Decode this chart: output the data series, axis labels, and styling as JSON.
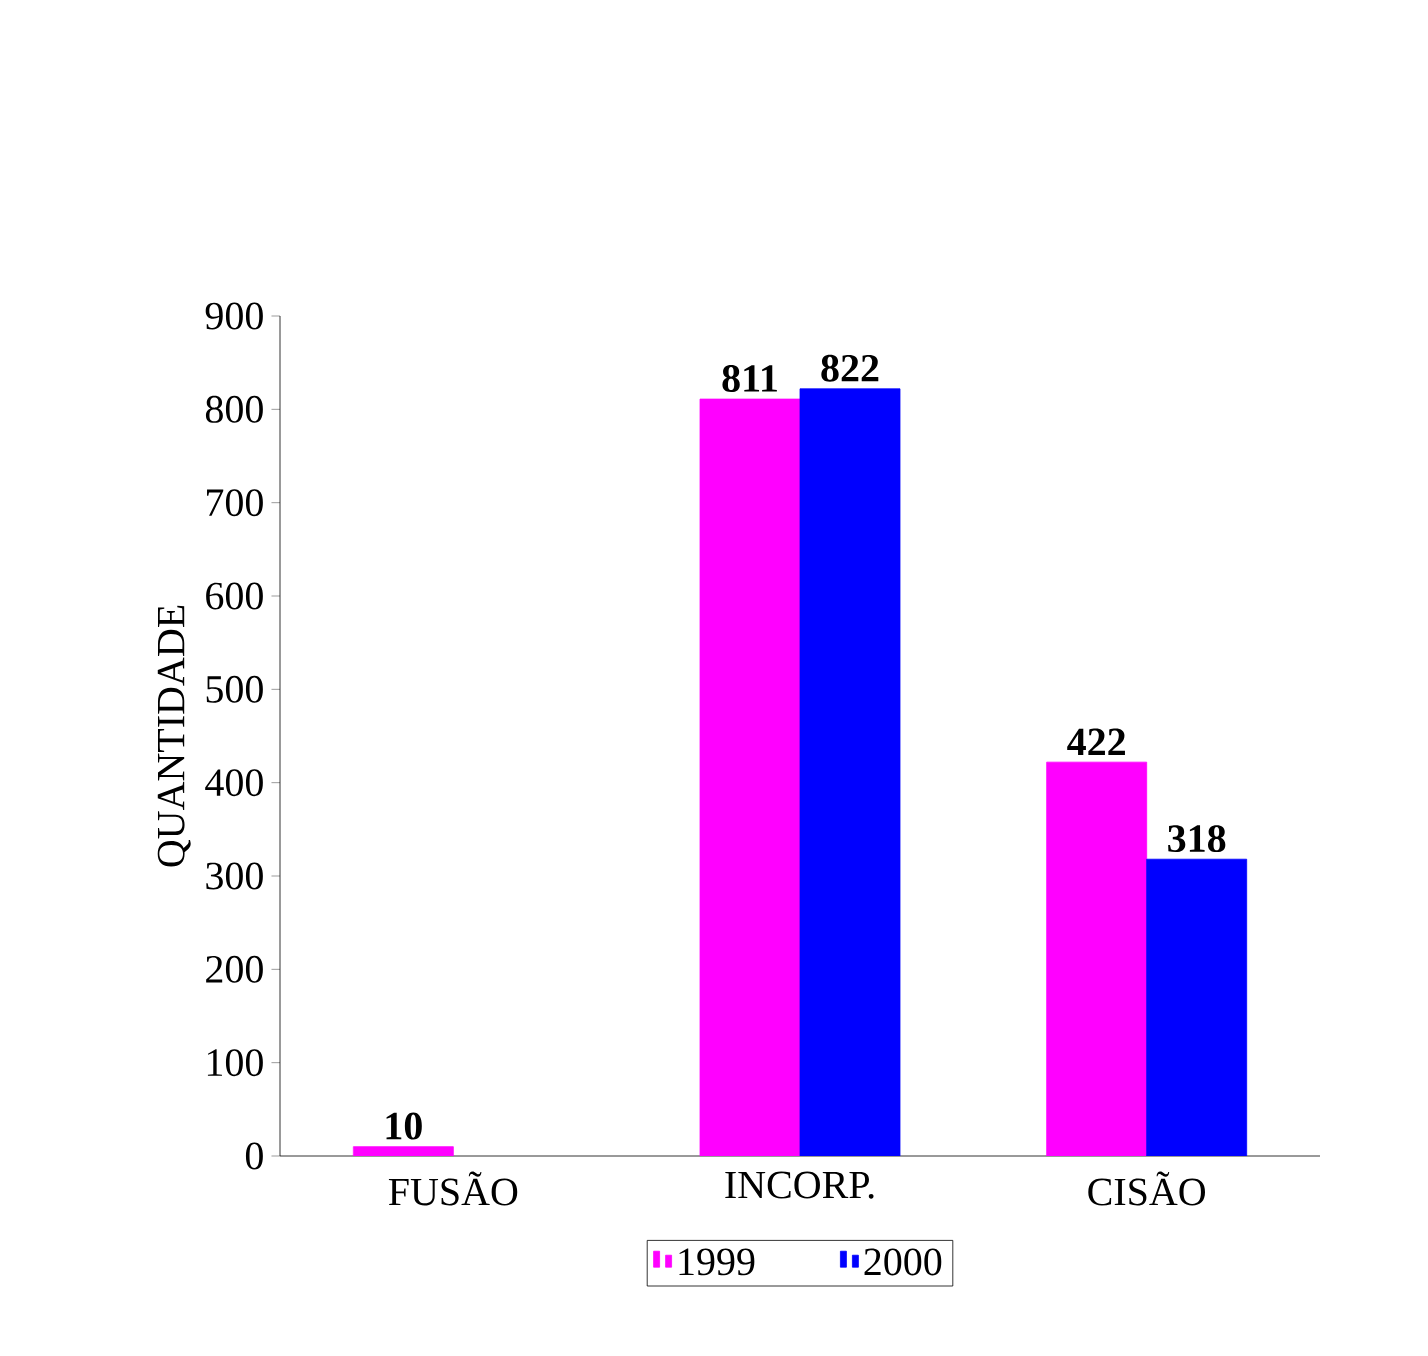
{
  "chart_data": {
    "type": "bar",
    "ylabel": "QUANTIDADE",
    "categories": [
      "FUSÃO",
      "INCORP.",
      "CISÃO"
    ],
    "series": [
      {
        "name": "1999",
        "color": "#ff00ff",
        "values": [
          10,
          811,
          422
        ]
      },
      {
        "name": "2000",
        "color": "#0000ff",
        "values": [
          null,
          822,
          318
        ]
      }
    ],
    "ylim": [
      0,
      900
    ],
    "yticks": [
      0,
      100,
      200,
      300,
      400,
      500,
      600,
      700,
      800,
      900
    ],
    "data_labels": true,
    "legend": "bottom",
    "grid": false
  }
}
